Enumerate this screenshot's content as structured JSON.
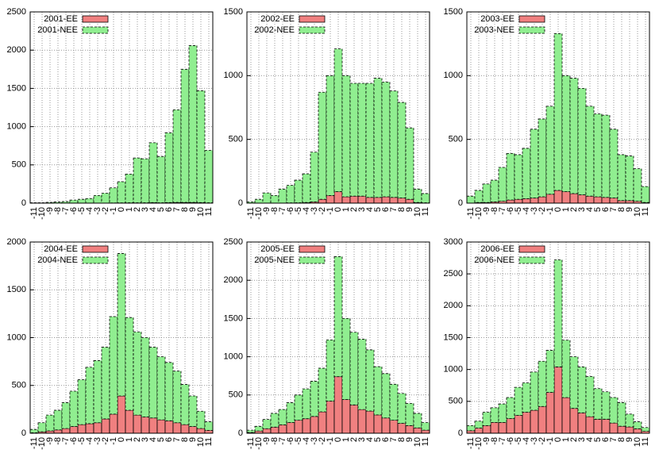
{
  "chart_data": [
    {
      "type": "bar",
      "stacked": true,
      "grid": true,
      "legend": "top-left",
      "categories": [
        "-11",
        "-10",
        "-9",
        "-8",
        "-7",
        "-6",
        "-5",
        "-4",
        "-3",
        "-2",
        "-1",
        "0",
        "1",
        "2",
        "3",
        "4",
        "5",
        "6",
        "7",
        "8",
        "9",
        "10",
        "11"
      ],
      "ylim": [
        0,
        2500
      ],
      "yticks": [
        0,
        500,
        1000,
        1500,
        2000,
        2500
      ],
      "series": [
        {
          "name": "2001-EE",
          "color": "#f08080",
          "values": [
            0,
            0,
            0,
            0,
            0,
            0,
            0,
            0,
            0,
            0,
            2,
            3,
            5,
            5,
            5,
            8,
            5,
            8,
            10,
            10,
            10,
            8,
            5
          ]
        },
        {
          "name": "2001-NEE",
          "color": "#90ee90",
          "values": [
            5,
            5,
            10,
            15,
            20,
            40,
            50,
            60,
            100,
            130,
            198,
            277,
            375,
            585,
            575,
            782,
            605,
            912,
            1210,
            1740,
            2050,
            1462,
            685
          ]
        }
      ]
    },
    {
      "type": "bar",
      "stacked": true,
      "grid": true,
      "legend": "top-left",
      "categories": [
        "-11",
        "-10",
        "-9",
        "-8",
        "-7",
        "-6",
        "-5",
        "-4",
        "-3",
        "-2",
        "-1",
        "0",
        "1",
        "2",
        "3",
        "4",
        "5",
        "6",
        "7",
        "8",
        "9",
        "10",
        "11"
      ],
      "ylim": [
        0,
        1500
      ],
      "yticks": [
        0,
        500,
        1000,
        1500
      ],
      "series": [
        {
          "name": "2002-EE",
          "color": "#f08080",
          "values": [
            0,
            0,
            0,
            0,
            0,
            2,
            3,
            5,
            10,
            30,
            60,
            90,
            50,
            55,
            55,
            45,
            45,
            50,
            45,
            40,
            30,
            5,
            3
          ]
        },
        {
          "name": "2002-NEE",
          "color": "#90ee90",
          "values": [
            10,
            30,
            80,
            60,
            110,
            138,
            177,
            225,
            390,
            840,
            940,
            1120,
            950,
            885,
            885,
            895,
            935,
            900,
            835,
            750,
            560,
            105,
            72
          ]
        }
      ]
    },
    {
      "type": "bar",
      "stacked": true,
      "grid": true,
      "legend": "top-left",
      "categories": [
        "-11",
        "-10",
        "-9",
        "-8",
        "-7",
        "-6",
        "-5",
        "-4",
        "-3",
        "-2",
        "-1",
        "0",
        "1",
        "2",
        "3",
        "4",
        "5",
        "6",
        "7",
        "8",
        "9",
        "10",
        "11"
      ],
      "ylim": [
        0,
        1500
      ],
      "yticks": [
        0,
        500,
        1000,
        1500
      ],
      "series": [
        {
          "name": "2003-EE",
          "color": "#f08080",
          "values": [
            0,
            5,
            5,
            10,
            15,
            25,
            30,
            35,
            40,
            50,
            70,
            100,
            90,
            75,
            65,
            55,
            50,
            45,
            40,
            20,
            20,
            15,
            5
          ]
        },
        {
          "name": "2003-NEE",
          "color": "#90ee90",
          "values": [
            55,
            95,
            145,
            170,
            265,
            365,
            350,
            395,
            540,
            610,
            690,
            1230,
            910,
            905,
            835,
            705,
            650,
            645,
            540,
            360,
            350,
            255,
            125
          ]
        }
      ]
    },
    {
      "type": "bar",
      "stacked": true,
      "grid": true,
      "legend": "top-left",
      "categories": [
        "-11",
        "-10",
        "-9",
        "-8",
        "-7",
        "-6",
        "-5",
        "-4",
        "-3",
        "-2",
        "-1",
        "0",
        "1",
        "2",
        "3",
        "4",
        "5",
        "6",
        "7",
        "8",
        "9",
        "10",
        "11"
      ],
      "ylim": [
        0,
        2000
      ],
      "yticks": [
        0,
        500,
        1000,
        1500,
        2000
      ],
      "series": [
        {
          "name": "2004-EE",
          "color": "#f08080",
          "values": [
            5,
            15,
            25,
            35,
            50,
            70,
            90,
            100,
            110,
            150,
            200,
            390,
            240,
            190,
            170,
            160,
            140,
            130,
            110,
            90,
            70,
            50,
            30
          ]
        },
        {
          "name": "2004-NEE",
          "color": "#90ee90",
          "values": [
            35,
            95,
            165,
            205,
            270,
            370,
            470,
            590,
            650,
            750,
            1020,
            1490,
            970,
            870,
            830,
            740,
            660,
            610,
            540,
            420,
            320,
            180,
            90
          ]
        }
      ]
    },
    {
      "type": "bar",
      "stacked": true,
      "grid": true,
      "legend": "top-left",
      "categories": [
        "-11",
        "-10",
        "-9",
        "-8",
        "-7",
        "-6",
        "-5",
        "-4",
        "-3",
        "-2",
        "-1",
        "0",
        "1",
        "2",
        "3",
        "4",
        "5",
        "6",
        "7",
        "8",
        "9",
        "10",
        "11"
      ],
      "ylim": [
        0,
        2500
      ],
      "yticks": [
        0,
        500,
        1000,
        1500,
        2000,
        2500
      ],
      "series": [
        {
          "name": "2005-EE",
          "color": "#f08080",
          "values": [
            10,
            30,
            60,
            80,
            110,
            140,
            170,
            190,
            220,
            280,
            420,
            740,
            440,
            370,
            310,
            290,
            240,
            200,
            170,
            130,
            100,
            70,
            40
          ]
        },
        {
          "name": "2005-NEE",
          "color": "#90ee90",
          "values": [
            30,
            60,
            120,
            180,
            200,
            260,
            330,
            390,
            460,
            570,
            800,
            1570,
            1060,
            950,
            920,
            800,
            630,
            580,
            470,
            390,
            290,
            190,
            100
          ]
        }
      ]
    },
    {
      "type": "bar",
      "stacked": true,
      "grid": true,
      "legend": "top-left",
      "categories": [
        "-11",
        "-10",
        "-9",
        "-8",
        "-7",
        "-6",
        "-5",
        "-4",
        "-3",
        "-2",
        "-1",
        "0",
        "1",
        "2",
        "3",
        "4",
        "5",
        "6",
        "7",
        "8",
        "9",
        "10",
        "11"
      ],
      "ylim": [
        0,
        3000
      ],
      "yticks": [
        0,
        500,
        1000,
        1500,
        2000,
        2500,
        3000
      ],
      "series": [
        {
          "name": "2006-EE",
          "color": "#f08080",
          "values": [
            40,
            80,
            120,
            170,
            170,
            230,
            280,
            330,
            360,
            420,
            640,
            1040,
            560,
            390,
            320,
            260,
            220,
            220,
            160,
            110,
            100,
            70,
            30
          ]
        },
        {
          "name": "2006-NEE",
          "color": "#90ee90",
          "values": [
            80,
            110,
            210,
            230,
            290,
            330,
            440,
            460,
            600,
            710,
            660,
            1680,
            900,
            810,
            720,
            630,
            480,
            430,
            400,
            370,
            200,
            110,
            60
          ]
        }
      ]
    }
  ]
}
